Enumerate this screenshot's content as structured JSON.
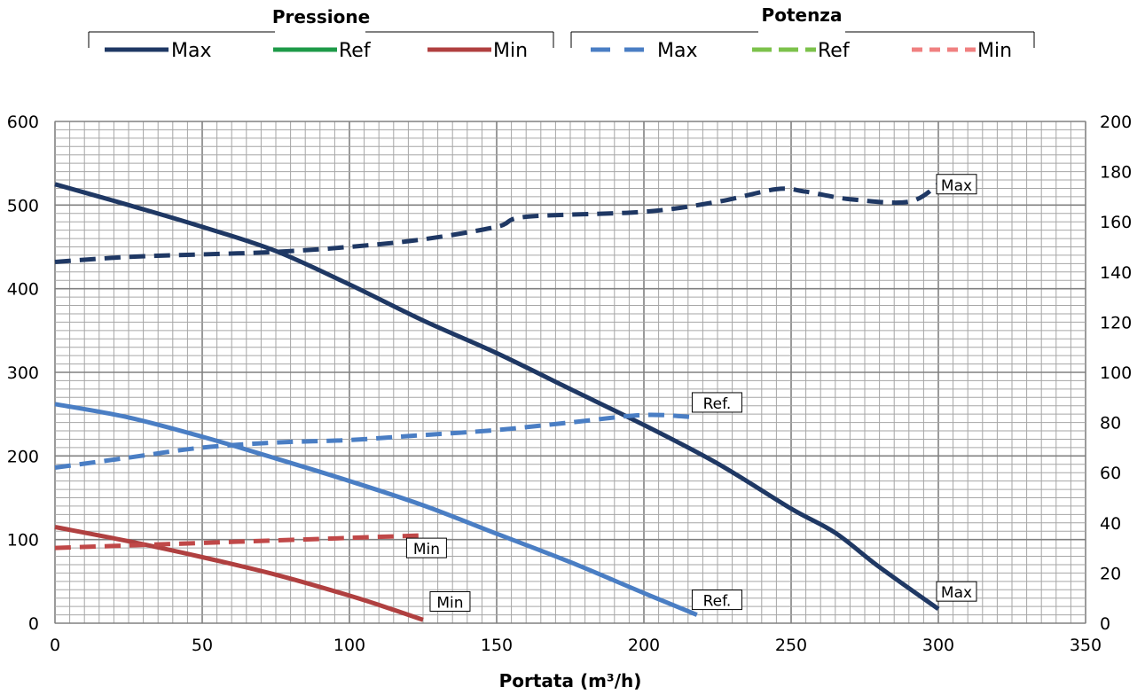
{
  "legend": {
    "pressure": {
      "title": "Pressione",
      "items": [
        {
          "label": "Max",
          "color": "#1F3864",
          "dashed": false
        },
        {
          "label": "Ref",
          "color": "#1E9A48",
          "dashed": false
        },
        {
          "label": "Min",
          "color": "#B04040",
          "dashed": false
        }
      ]
    },
    "power": {
      "title": "Potenza",
      "items": [
        {
          "label": "Max",
          "color": "#4A7EC4",
          "dashed": true
        },
        {
          "label": "Ref",
          "color": "#7CC24B",
          "dashed": true
        },
        {
          "label": "Min",
          "color": "#F08080",
          "dashed": true
        }
      ]
    }
  },
  "chart_data": {
    "type": "line",
    "xlabel": "Portata (m³/h)",
    "xlim": [
      0,
      350
    ],
    "x_ticks": [
      0,
      50,
      100,
      150,
      200,
      250,
      300,
      350
    ],
    "ylim_left": [
      0,
      600
    ],
    "y_left_ticks": [
      0,
      100,
      200,
      300,
      400,
      500,
      600
    ],
    "ylim_right": [
      0,
      200
    ],
    "y_right_ticks": [
      0,
      20,
      40,
      60,
      80,
      100,
      120,
      140,
      160,
      180,
      200
    ],
    "grid": true,
    "series": [
      {
        "key": "p-max",
        "axis": "left",
        "color": "#1F3864",
        "dashed": false,
        "x": [
          0,
          25,
          50,
          75,
          100,
          125,
          150,
          175,
          200,
          225,
          250,
          265,
          280,
          300
        ],
        "y": [
          525,
          500,
          474,
          445,
          405,
          362,
          323,
          280,
          237,
          191,
          137,
          108,
          67,
          17
        ]
      },
      {
        "key": "p-ref",
        "axis": "left",
        "color": "#4A7EC4",
        "dashed": false,
        "x": [
          0,
          25,
          50,
          75,
          100,
          125,
          150,
          175,
          200,
          218
        ],
        "y": [
          262,
          246,
          223,
          197,
          170,
          141,
          107,
          73,
          36,
          10
        ]
      },
      {
        "key": "p-min",
        "axis": "left",
        "color": "#B04040",
        "dashed": false,
        "x": [
          0,
          25,
          50,
          75,
          100,
          115,
          125
        ],
        "y": [
          115,
          98,
          79,
          58,
          33,
          16,
          4
        ]
      },
      {
        "key": "w-max",
        "axis": "right",
        "color": "#1F3864",
        "dashed": true,
        "x": [
          0,
          25,
          50,
          75,
          100,
          125,
          150,
          160,
          200,
          225,
          245,
          255,
          270,
          290,
          300
        ],
        "y": [
          144,
          146,
          147,
          148,
          150,
          153,
          158,
          162,
          164,
          168,
          173,
          172,
          169,
          168,
          175
        ]
      },
      {
        "key": "w-ref",
        "axis": "right",
        "color": "#4A7EC4",
        "dashed": true,
        "x": [
          0,
          25,
          50,
          75,
          100,
          125,
          150,
          175,
          200,
          218
        ],
        "y": [
          62,
          66,
          70,
          72,
          73,
          75,
          77,
          80,
          83,
          82
        ]
      },
      {
        "key": "w-min",
        "axis": "right",
        "color": "#C04848",
        "dashed": true,
        "x": [
          0,
          25,
          50,
          75,
          100,
          125
        ],
        "y": [
          30,
          31,
          32,
          33,
          34,
          35
        ]
      }
    ],
    "annotations": [
      {
        "text": "Max",
        "x": 300,
        "axis": "right",
        "y": 175
      },
      {
        "text": "Ref.",
        "x": 217,
        "axis": "right",
        "y": 88
      },
      {
        "text": "Min",
        "x": 120,
        "axis": "right",
        "y": 30
      },
      {
        "text": "Max",
        "x": 300,
        "axis": "left",
        "y": 38
      },
      {
        "text": "Ref.",
        "x": 217,
        "axis": "left",
        "y": 28
      },
      {
        "text": "Min",
        "x": 128,
        "axis": "left",
        "y": 26
      }
    ]
  }
}
